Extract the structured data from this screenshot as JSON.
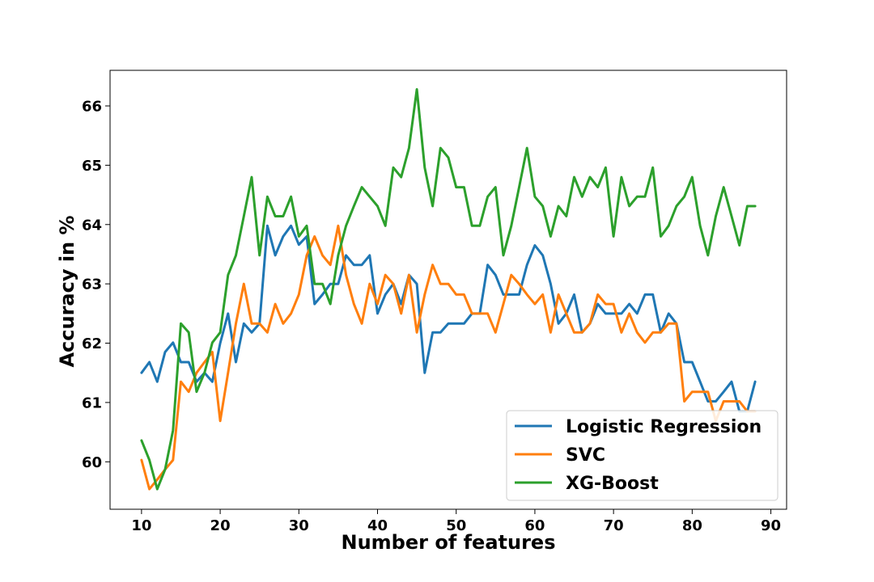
{
  "chart_data": {
    "type": "line",
    "title": "",
    "xlabel": "Number of features",
    "ylabel": "Accuracy in %",
    "xlim": [
      6,
      92
    ],
    "ylim": [
      59.2,
      66.6
    ],
    "xticks": [
      10,
      20,
      30,
      40,
      50,
      60,
      70,
      80,
      90
    ],
    "yticks": [
      60,
      61,
      62,
      63,
      64,
      65,
      66
    ],
    "grid": false,
    "legend": "lower-right",
    "x": [
      10,
      11,
      12,
      13,
      14,
      15,
      16,
      17,
      18,
      19,
      20,
      21,
      22,
      23,
      24,
      25,
      26,
      27,
      28,
      29,
      30,
      31,
      32,
      33,
      34,
      35,
      36,
      37,
      38,
      39,
      40,
      41,
      42,
      43,
      44,
      45,
      46,
      47,
      48,
      49,
      50,
      51,
      52,
      53,
      54,
      55,
      56,
      57,
      58,
      59,
      60,
      61,
      62,
      63,
      64,
      65,
      66,
      67,
      68,
      69,
      70,
      71,
      72,
      73,
      74,
      75,
      76,
      77,
      78,
      79,
      80,
      81,
      82,
      83,
      84,
      85,
      86,
      87,
      88
    ],
    "series": [
      {
        "name": "Logistic Regression",
        "color": "#1f77b4",
        "values": [
          61.5,
          61.68,
          61.35,
          61.85,
          62.01,
          61.68,
          61.68,
          61.35,
          61.5,
          61.35,
          62.0,
          62.5,
          61.68,
          62.33,
          62.18,
          62.33,
          63.98,
          63.48,
          63.8,
          63.98,
          63.66,
          63.8,
          62.66,
          62.82,
          63.0,
          63.0,
          63.48,
          63.32,
          63.32,
          63.48,
          62.5,
          62.82,
          63.0,
          62.66,
          63.15,
          63.0,
          61.5,
          62.18,
          62.18,
          62.33,
          62.33,
          62.33,
          62.5,
          62.5,
          63.32,
          63.15,
          62.82,
          62.82,
          62.82,
          63.32,
          63.65,
          63.48,
          63.0,
          62.33,
          62.5,
          62.82,
          62.18,
          62.33,
          62.66,
          62.5,
          62.5,
          62.5,
          62.66,
          62.5,
          62.82,
          62.82,
          62.18,
          62.5,
          62.33,
          61.68,
          61.68,
          61.35,
          61.02,
          61.02,
          61.18,
          61.35,
          60.85,
          60.85,
          61.35
        ]
      },
      {
        "name": "SVC",
        "color": "#ff7f0e",
        "values": [
          60.03,
          59.54,
          59.7,
          59.87,
          60.03,
          61.35,
          61.18,
          61.5,
          61.68,
          61.85,
          60.69,
          61.5,
          62.33,
          63.0,
          62.33,
          62.33,
          62.18,
          62.66,
          62.33,
          62.5,
          62.82,
          63.48,
          63.8,
          63.48,
          63.32,
          63.98,
          63.15,
          62.66,
          62.33,
          63.0,
          62.66,
          63.15,
          63.0,
          62.5,
          63.15,
          62.18,
          62.82,
          63.32,
          63.0,
          63.0,
          62.82,
          62.82,
          62.5,
          62.5,
          62.5,
          62.18,
          62.66,
          63.15,
          63.0,
          62.82,
          62.66,
          62.82,
          62.18,
          62.82,
          62.5,
          62.18,
          62.18,
          62.33,
          62.82,
          62.66,
          62.66,
          62.18,
          62.5,
          62.18,
          62.01,
          62.18,
          62.18,
          62.33,
          62.33,
          61.02,
          61.18,
          61.18,
          61.18,
          60.69,
          61.02,
          61.02,
          61.02,
          60.85,
          60.85
        ]
      },
      {
        "name": "XG-Boost",
        "color": "#2ca02c",
        "values": [
          60.36,
          60.03,
          59.54,
          59.87,
          60.53,
          62.33,
          62.18,
          61.18,
          61.5,
          62.01,
          62.18,
          63.15,
          63.48,
          64.14,
          64.8,
          63.48,
          64.47,
          64.14,
          64.14,
          64.47,
          63.8,
          63.98,
          63.0,
          63.0,
          62.66,
          63.48,
          63.98,
          64.31,
          64.63,
          64.47,
          64.31,
          63.98,
          64.96,
          64.8,
          65.29,
          66.28,
          64.96,
          64.31,
          65.29,
          65.13,
          64.63,
          64.63,
          63.98,
          63.98,
          64.47,
          64.63,
          63.48,
          63.98,
          64.63,
          65.29,
          64.47,
          64.31,
          63.8,
          64.31,
          64.14,
          64.8,
          64.47,
          64.8,
          64.63,
          64.96,
          63.8,
          64.8,
          64.31,
          64.47,
          64.47,
          64.96,
          63.8,
          63.98,
          64.31,
          64.47,
          64.8,
          63.98,
          63.48,
          64.14,
          64.63,
          64.14,
          63.65,
          64.31,
          64.31
        ]
      }
    ]
  }
}
